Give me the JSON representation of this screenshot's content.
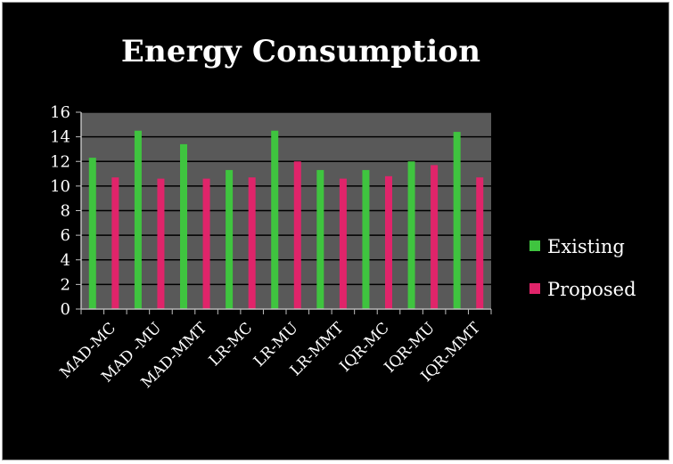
{
  "chart_data": {
    "type": "bar",
    "title": "Energy Consumption",
    "categories": [
      "MAD-MC",
      "MAD -MU",
      "MAD-MMT",
      "LR-MC",
      "LR-MU",
      "LR-MMT",
      "IQR-MC",
      "IQR-MU",
      "IQR-MMT"
    ],
    "series": [
      {
        "name": "Existing",
        "color": "#3fc43f",
        "values": [
          12.3,
          14.5,
          13.4,
          11.3,
          14.5,
          11.3,
          11.3,
          12.0,
          14.4
        ]
      },
      {
        "name": "Proposed",
        "color": "#e0246a",
        "values": [
          10.7,
          10.6,
          10.6,
          10.7,
          12.0,
          10.6,
          10.8,
          11.7,
          10.7
        ]
      }
    ],
    "ylim": [
      0,
      16
    ],
    "yticks": [
      "0",
      "2",
      "4",
      "6",
      "8",
      "10",
      "12",
      "14",
      "16"
    ],
    "xlabel": "",
    "ylabel": "",
    "grid": true,
    "legend_position": "right",
    "plot_background": "#595959"
  }
}
